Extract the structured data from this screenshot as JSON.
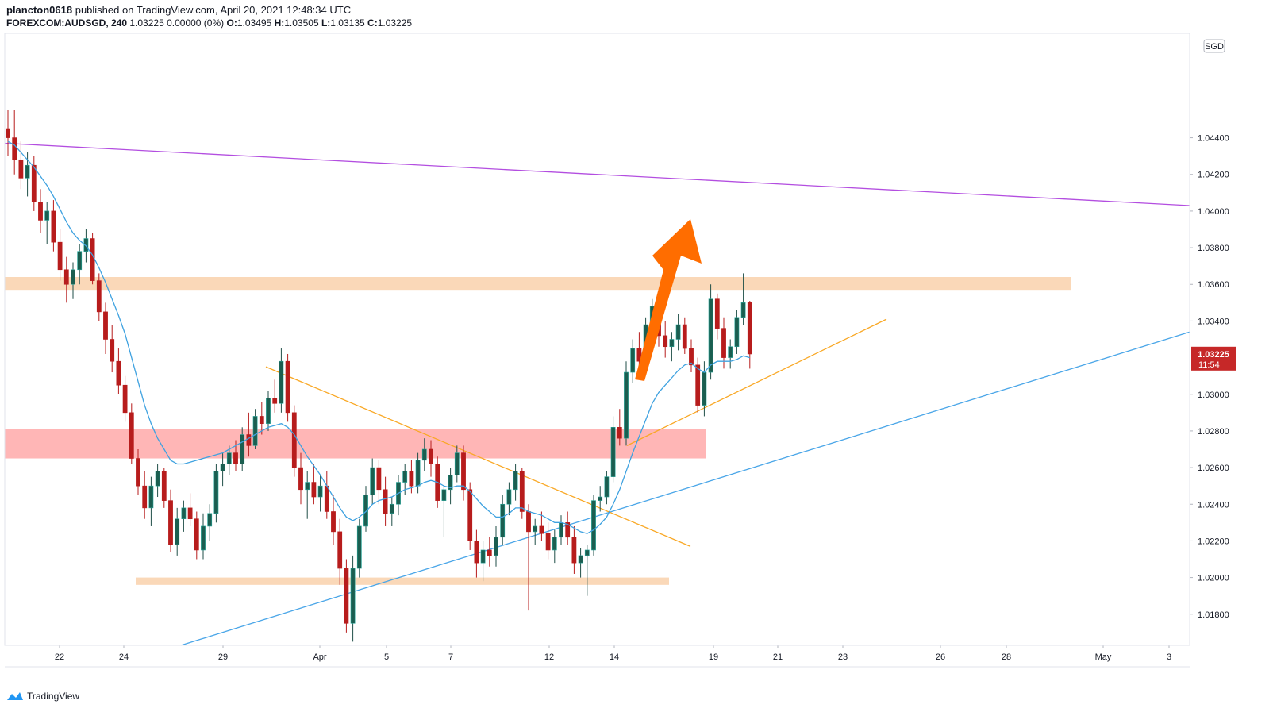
{
  "header": {
    "author": "plancton0618",
    "published_text": "published on TradingView.com, April 20, 2021 12:48:34 UTC",
    "symbol": "FOREXCOM:AUDSGD, 240",
    "quote": "1.03225 0.00000 (0%)",
    "o_label": "O:",
    "o_value": "1.03495",
    "h_label": "H:",
    "h_value": "1.03505",
    "l_label": "L:",
    "l_value": "1.03135",
    "c_label": "C:",
    "c_value": "1.03225"
  },
  "footer": {
    "brand": "TradingView"
  },
  "colors": {
    "up": "#26a69a",
    "up_fill": "#1b5e50",
    "down": "#b71c1c",
    "ma": "#3fa2e0",
    "purple": "#b34ee0",
    "orange_line": "#f9a825",
    "blue_line": "#4aa6e8",
    "zone_orange": "#fad8b8",
    "zone_red": "#ffb6b6",
    "arrow": "#ff6d00",
    "price_tag": "#c62828"
  },
  "chart_data": {
    "type": "candlestick",
    "currency_label": "SGD",
    "y_range": [
      1.0163,
      1.0497
    ],
    "y_ticks": [
      "1.04400",
      "1.04200",
      "1.04000",
      "1.03800",
      "1.03600",
      "1.03400",
      "1.03000",
      "1.02800",
      "1.02600",
      "1.02400",
      "1.02200",
      "1.02000",
      "1.01800"
    ],
    "x_ticks": [
      "22",
      "24",
      "29",
      "Apr",
      "5",
      "7",
      "12",
      "14",
      "19",
      "21",
      "23",
      "26",
      "28",
      "May",
      "3"
    ],
    "last_price": "1.03225",
    "countdown": "11:54",
    "ohlc": [
      [
        1.0445,
        1.0455,
        1.043,
        1.044
      ],
      [
        1.044,
        1.0455,
        1.042,
        1.0428
      ],
      [
        1.0428,
        1.0438,
        1.0412,
        1.0418
      ],
      [
        1.0418,
        1.0432,
        1.0408,
        1.0425
      ],
      [
        1.0425,
        1.043,
        1.04,
        1.0405
      ],
      [
        1.0405,
        1.0412,
        1.0388,
        1.0395
      ],
      [
        1.0395,
        1.0405,
        1.0382,
        1.04
      ],
      [
        1.04,
        1.0406,
        1.0378,
        1.0383
      ],
      [
        1.0383,
        1.039,
        1.0362,
        1.0368
      ],
      [
        1.0368,
        1.0375,
        1.035,
        1.036
      ],
      [
        1.036,
        1.0372,
        1.0352,
        1.0368
      ],
      [
        1.0368,
        1.0382,
        1.036,
        1.0378
      ],
      [
        1.0378,
        1.039,
        1.0372,
        1.0385
      ],
      [
        1.0385,
        1.0388,
        1.036,
        1.0362
      ],
      [
        1.0362,
        1.0366,
        1.034,
        1.0345
      ],
      [
        1.0345,
        1.035,
        1.0322,
        1.033
      ],
      [
        1.033,
        1.0338,
        1.0312,
        1.0318
      ],
      [
        1.0318,
        1.0325,
        1.03,
        1.0305
      ],
      [
        1.0305,
        1.031,
        1.0285,
        1.029
      ],
      [
        1.029,
        1.0295,
        1.0262,
        1.0265
      ],
      [
        1.0265,
        1.027,
        1.0245,
        1.025
      ],
      [
        1.025,
        1.0258,
        1.0232,
        1.0238
      ],
      [
        1.0238,
        1.0255,
        1.0228,
        1.025
      ],
      [
        1.025,
        1.0262,
        1.0244,
        1.0258
      ],
      [
        1.0258,
        1.026,
        1.0238,
        1.0242
      ],
      [
        1.0242,
        1.0248,
        1.0214,
        1.0218
      ],
      [
        1.0218,
        1.0238,
        1.0212,
        1.0232
      ],
      [
        1.0232,
        1.0242,
        1.0225,
        1.0238
      ],
      [
        1.0238,
        1.0246,
        1.0228,
        1.0232
      ],
      [
        1.0232,
        1.0236,
        1.021,
        1.0215
      ],
      [
        1.0215,
        1.0235,
        1.021,
        1.0228
      ],
      [
        1.0228,
        1.024,
        1.022,
        1.0235
      ],
      [
        1.0235,
        1.0262,
        1.023,
        1.0258
      ],
      [
        1.0258,
        1.0268,
        1.025,
        1.0262
      ],
      [
        1.0262,
        1.0272,
        1.0256,
        1.0268
      ],
      [
        1.0268,
        1.0275,
        1.0258,
        1.0262
      ],
      [
        1.0262,
        1.0282,
        1.0258,
        1.0278
      ],
      [
        1.0278,
        1.029,
        1.0266,
        1.0272
      ],
      [
        1.0272,
        1.0292,
        1.027,
        1.0288
      ],
      [
        1.0288,
        1.0296,
        1.0278,
        1.0284
      ],
      [
        1.0284,
        1.0302,
        1.028,
        1.0298
      ],
      [
        1.0298,
        1.0308,
        1.029,
        1.0295
      ],
      [
        1.0295,
        1.0325,
        1.029,
        1.0318
      ],
      [
        1.0318,
        1.0322,
        1.0285,
        1.029
      ],
      [
        1.029,
        1.0294,
        1.0255,
        1.026
      ],
      [
        1.026,
        1.0268,
        1.024,
        1.0248
      ],
      [
        1.0248,
        1.0258,
        1.0232,
        1.0252
      ],
      [
        1.0252,
        1.0262,
        1.024,
        1.0244
      ],
      [
        1.0244,
        1.0256,
        1.0236,
        1.025
      ],
      [
        1.025,
        1.0258,
        1.0232,
        1.0236
      ],
      [
        1.0236,
        1.0245,
        1.0218,
        1.0225
      ],
      [
        1.0225,
        1.0232,
        1.0196,
        1.0205
      ],
      [
        1.0205,
        1.021,
        1.017,
        1.0175
      ],
      [
        1.0175,
        1.0212,
        1.0165,
        1.0205
      ],
      [
        1.0205,
        1.0232,
        1.02,
        1.0228
      ],
      [
        1.0228,
        1.025,
        1.0225,
        1.0245
      ],
      [
        1.0245,
        1.0265,
        1.024,
        1.026
      ],
      [
        1.026,
        1.0264,
        1.024,
        1.0248
      ],
      [
        1.0248,
        1.0255,
        1.0228,
        1.0235
      ],
      [
        1.0235,
        1.0244,
        1.0228,
        1.024
      ],
      [
        1.024,
        1.0256,
        1.0234,
        1.0252
      ],
      [
        1.0252,
        1.0262,
        1.0245,
        1.0258
      ],
      [
        1.0258,
        1.0264,
        1.0246,
        1.025
      ],
      [
        1.025,
        1.0268,
        1.0246,
        1.0264
      ],
      [
        1.0264,
        1.0276,
        1.0258,
        1.027
      ],
      [
        1.027,
        1.0275,
        1.0255,
        1.0262
      ],
      [
        1.0262,
        1.0266,
        1.0238,
        1.0242
      ],
      [
        1.0242,
        1.025,
        1.0222,
        1.0248
      ],
      [
        1.0248,
        1.026,
        1.024,
        1.0256
      ],
      [
        1.0256,
        1.0272,
        1.0252,
        1.0268
      ],
      [
        1.0268,
        1.0272,
        1.0242,
        1.0248
      ],
      [
        1.0248,
        1.0252,
        1.0215,
        1.022
      ],
      [
        1.022,
        1.0226,
        1.02,
        1.0208
      ],
      [
        1.0208,
        1.022,
        1.0198,
        1.0215
      ],
      [
        1.0215,
        1.0222,
        1.0206,
        1.0212
      ],
      [
        1.0212,
        1.0228,
        1.0206,
        1.0222
      ],
      [
        1.0222,
        1.0245,
        1.0218,
        1.024
      ],
      [
        1.024,
        1.0252,
        1.0234,
        1.0248
      ],
      [
        1.0248,
        1.0262,
        1.0242,
        1.0258
      ],
      [
        1.0258,
        1.026,
        1.0232,
        1.0236
      ],
      [
        1.0236,
        1.024,
        1.0182,
        1.0225
      ],
      [
        1.0225,
        1.0232,
        1.0218,
        1.0228
      ],
      [
        1.0228,
        1.0236,
        1.022,
        1.0224
      ],
      [
        1.0224,
        1.023,
        1.021,
        1.0215
      ],
      [
        1.0215,
        1.0226,
        1.0208,
        1.0222
      ],
      [
        1.0222,
        1.0234,
        1.0218,
        1.023
      ],
      [
        1.023,
        1.0236,
        1.0218,
        1.0222
      ],
      [
        1.0222,
        1.0228,
        1.0202,
        1.0208
      ],
      [
        1.0208,
        1.0216,
        1.02,
        1.0212
      ],
      [
        1.0212,
        1.0218,
        1.019,
        1.0215
      ],
      [
        1.0215,
        1.0245,
        1.0212,
        1.0242
      ],
      [
        1.0242,
        1.025,
        1.0236,
        1.0244
      ],
      [
        1.0244,
        1.0258,
        1.024,
        1.0255
      ],
      [
        1.0255,
        1.0288,
        1.0252,
        1.0282
      ],
      [
        1.0282,
        1.0292,
        1.0272,
        1.0276
      ],
      [
        1.0276,
        1.0318,
        1.0272,
        1.0312
      ],
      [
        1.0312,
        1.033,
        1.0306,
        1.0325
      ],
      [
        1.0325,
        1.0334,
        1.031,
        1.0318
      ],
      [
        1.0318,
        1.0342,
        1.0314,
        1.0338
      ],
      [
        1.0338,
        1.0352,
        1.033,
        1.0348
      ],
      [
        1.0348,
        1.035,
        1.0326,
        1.0332
      ],
      [
        1.0332,
        1.034,
        1.032,
        1.0326
      ],
      [
        1.0326,
        1.0334,
        1.0318,
        1.033
      ],
      [
        1.033,
        1.0344,
        1.0324,
        1.0338
      ],
      [
        1.0338,
        1.0342,
        1.0322,
        1.0325
      ],
      [
        1.0325,
        1.033,
        1.0312,
        1.0316
      ],
      [
        1.0316,
        1.032,
        1.029,
        1.0294
      ],
      [
        1.0294,
        1.0318,
        1.0288,
        1.0312
      ],
      [
        1.0312,
        1.036,
        1.0308,
        1.0352
      ],
      [
        1.0352,
        1.0355,
        1.033,
        1.0336
      ],
      [
        1.0336,
        1.0342,
        1.0314,
        1.032
      ],
      [
        1.032,
        1.033,
        1.0314,
        1.0326
      ],
      [
        1.0326,
        1.0346,
        1.0322,
        1.0342
      ],
      [
        1.0342,
        1.0366,
        1.0338,
        1.035
      ],
      [
        1.035,
        1.0351,
        1.0314,
        1.0322
      ]
    ],
    "ma_values": [
      1.0438,
      1.0436,
      1.0432,
      1.0428,
      1.0424,
      1.0419,
      1.0414,
      1.0408,
      1.0401,
      1.0394,
      1.0388,
      1.0384,
      1.0381,
      1.0376,
      1.0369,
      1.0361,
      1.0352,
      1.0343,
      1.0333,
      1.032,
      1.0307,
      1.0294,
      1.0284,
      1.0276,
      1.027,
      1.0264,
      1.0262,
      1.0262,
      1.0263,
      1.0264,
      1.0265,
      1.0266,
      1.0267,
      1.0268,
      1.027,
      1.0272,
      1.0274,
      1.0276,
      1.0278,
      1.028,
      1.0282,
      1.0283,
      1.0284,
      1.0282,
      1.0278,
      1.0272,
      1.0266,
      1.0261,
      1.0256,
      1.025,
      1.0244,
      1.0238,
      1.0233,
      1.0231,
      1.0233,
      1.0236,
      1.024,
      1.0242,
      1.0243,
      1.0244,
      1.0246,
      1.0248,
      1.0249,
      1.025,
      1.0252,
      1.0253,
      1.0252,
      1.025,
      1.0249,
      1.025,
      1.025,
      1.0247,
      1.0243,
      1.0239,
      1.0236,
      1.0233,
      1.0233,
      1.0235,
      1.0238,
      1.0238,
      1.0236,
      1.0235,
      1.0234,
      1.0232,
      1.023,
      1.023,
      1.0229,
      1.0227,
      1.0225,
      1.0224,
      1.0226,
      1.0229,
      1.0233,
      1.024,
      1.0248,
      1.0258,
      1.0268,
      1.0277,
      1.0286,
      1.0295,
      1.0301,
      1.0305,
      1.0309,
      1.0313,
      1.0316,
      1.0317,
      1.0314,
      1.0312,
      1.0316,
      1.0318,
      1.0318,
      1.0318,
      1.0319,
      1.0321,
      1.032
    ]
  }
}
